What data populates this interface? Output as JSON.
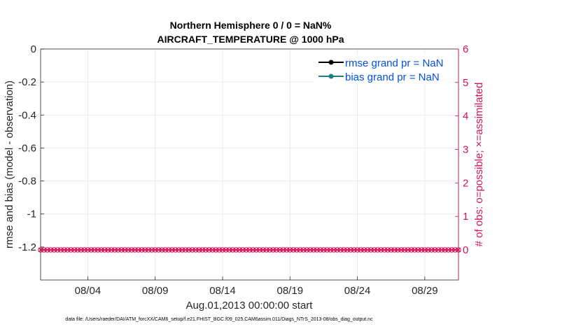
{
  "chart_data": {
    "type": "line",
    "title": "Northern Hemisphere 0 / 0 = NaN%",
    "subtitle": "AIRCRAFT_TEMPERATURE @ 1000 hPa",
    "xlabel": "Aug.01,2013 00:00:00 start",
    "ylabel": "rmse and bias (model - observation)",
    "y2label": "# of obs: o=possible; ×=assimilated",
    "x_range_days": [
      0.5,
      31.5
    ],
    "ylim": [
      -1.4,
      0
    ],
    "y2lim": [
      0,
      6
    ],
    "xticks": [
      {
        "day": 4,
        "label": "08/04"
      },
      {
        "day": 9,
        "label": "08/09"
      },
      {
        "day": 14,
        "label": "08/14"
      },
      {
        "day": 19,
        "label": "08/19"
      },
      {
        "day": 24,
        "label": "08/24"
      },
      {
        "day": 29,
        "label": "08/29"
      }
    ],
    "yticks": [
      {
        "value": 0,
        "label": "0"
      },
      {
        "value": -0.2,
        "label": "-0.2"
      },
      {
        "value": -0.4,
        "label": "-0.4"
      },
      {
        "value": -0.6,
        "label": "-0.6"
      },
      {
        "value": -0.8,
        "label": "-0.8"
      },
      {
        "value": -1,
        "label": "-1"
      },
      {
        "value": -1.2,
        "label": "-1.2"
      }
    ],
    "y2ticks": [
      {
        "value": 0,
        "label": "0"
      },
      {
        "value": 1,
        "label": "1"
      },
      {
        "value": 2,
        "label": "2"
      },
      {
        "value": 3,
        "label": "3"
      },
      {
        "value": 4,
        "label": "4"
      },
      {
        "value": 5,
        "label": "5"
      },
      {
        "value": 6,
        "label": "6"
      }
    ],
    "grid": true,
    "legend_position": "top-right",
    "series": [
      {
        "name": "rmse grand pr = NaN",
        "color": "#000000",
        "marker": "circle",
        "values": []
      },
      {
        "name": "bias grand pr = NaN",
        "color": "#1a7f7f",
        "marker": "circle",
        "values": []
      }
    ],
    "obs_counts": {
      "axis": "right",
      "color": "#d4145a",
      "possible_marker": "o",
      "assimilated_marker": "x",
      "points_per_day": 4,
      "value": 0
    },
    "legend_text_color": "#0050e6",
    "right_axis_color": "#d4145a"
  },
  "footnote": "data file: /Users/raeder/DAI/ATM_forcXX/CAM6_setup/f.e21.FHIST_BGC.f09_025.CAM6assim.011/Diags_NTrS_2013-08/obs_diag_output.nc"
}
